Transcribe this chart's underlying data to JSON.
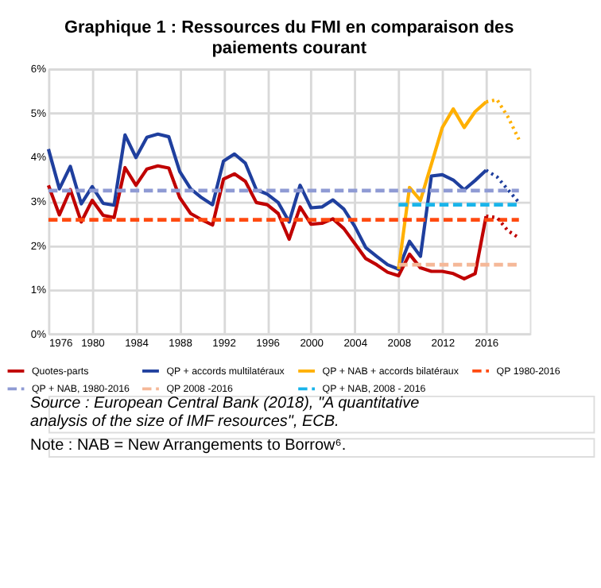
{
  "chart_data": {
    "type": "line",
    "title": "Graphique 1 : Ressources du FMI en comparaison des paiements courant",
    "xlim": [
      1976,
      2020
    ],
    "xticks": [
      1976,
      1980,
      1984,
      1988,
      1992,
      1996,
      2000,
      2004,
      2008,
      2012,
      2016
    ],
    "ylim": [
      0,
      6
    ],
    "yticks": [
      {
        "value": 0,
        "label": "0%"
      },
      {
        "value": 1,
        "label": "1%"
      },
      {
        "value": 2,
        "label": "2%"
      },
      {
        "value": 3,
        "label": "3%"
      },
      {
        "value": 4,
        "label": "4%"
      },
      {
        "value": 5,
        "label": "5%"
      },
      {
        "value": 6,
        "label": "6%"
      }
    ],
    "grid": true,
    "legend": "bottom",
    "series": [
      {
        "name": "Quotes-parts",
        "color": "#c00000",
        "line_style": "solid",
        "x": [
          1976,
          1977,
          1978,
          1979,
          1980,
          1981,
          1982,
          1983,
          1984,
          1985,
          1986,
          1987,
          1988,
          1989,
          1990,
          1991,
          1992,
          1993,
          1994,
          1995,
          1996,
          1997,
          1998,
          1999,
          2000,
          2001,
          2002,
          2003,
          2004,
          2005,
          2006,
          2007,
          2008,
          2009,
          2010,
          2011,
          2012,
          2013,
          2014,
          2015,
          2016
        ],
        "values": [
          3.36,
          2.69,
          3.26,
          2.53,
          3.02,
          2.68,
          2.63,
          3.76,
          3.36,
          3.73,
          3.8,
          3.75,
          3.08,
          2.72,
          2.58,
          2.46,
          3.5,
          3.62,
          3.45,
          2.97,
          2.92,
          2.72,
          2.14,
          2.87,
          2.48,
          2.5,
          2.6,
          2.38,
          2.04,
          1.7,
          1.56,
          1.39,
          1.31,
          1.8,
          1.49,
          1.41,
          1.41,
          1.36,
          1.24,
          1.36,
          2.66
        ]
      },
      {
        "name": "QP + accords multilatéraux",
        "color": "#1f3f9e",
        "line_style": "solid",
        "x": [
          1976,
          1977,
          1978,
          1979,
          1980,
          1981,
          1982,
          1983,
          1984,
          1985,
          1986,
          1987,
          1988,
          1989,
          1990,
          1991,
          1992,
          1993,
          1994,
          1995,
          1996,
          1997,
          1998,
          1999,
          2000,
          2001,
          2002,
          2003,
          2004,
          2005,
          2006,
          2007,
          2008,
          2009,
          2010,
          2011,
          2012,
          2013,
          2014,
          2015,
          2016
        ],
        "values": [
          4.18,
          3.28,
          3.79,
          2.94,
          3.33,
          2.95,
          2.91,
          4.5,
          3.99,
          4.45,
          4.52,
          4.46,
          3.67,
          3.28,
          3.08,
          2.92,
          3.91,
          4.07,
          3.86,
          3.26,
          3.16,
          2.97,
          2.53,
          3.36,
          2.85,
          2.87,
          3.03,
          2.82,
          2.43,
          1.95,
          1.75,
          1.56,
          1.46,
          2.09,
          1.75,
          3.57,
          3.6,
          3.48,
          3.26,
          3.47,
          3.7
        ]
      },
      {
        "name": "QP + NAB + accords bilatéraux",
        "color": "#ffb000",
        "line_style": "solid",
        "x": [
          2008,
          2009,
          2010,
          2011,
          2012,
          2013,
          2014,
          2015,
          2016
        ],
        "values": [
          1.46,
          3.31,
          3.02,
          3.84,
          4.67,
          5.09,
          4.67,
          5.03,
          5.25
        ]
      },
      {
        "name": "QP 1980-2016",
        "color": "#ff4a10",
        "line_style": "dashed",
        "x": [
          1976,
          2019
        ],
        "values": [
          2.58,
          2.58
        ]
      },
      {
        "name": "QP + NAB, 1980-2016",
        "color": "#8f9bd4",
        "line_style": "dashed",
        "x": [
          1976,
          2019
        ],
        "values": [
          3.24,
          3.24
        ]
      },
      {
        "name": "QP 2008 -2016",
        "color": "#f5b898",
        "line_style": "dashed",
        "x": [
          2008,
          2019
        ],
        "values": [
          1.56,
          1.56
        ]
      },
      {
        "name": "QP + NAB, 2008 - 2016",
        "color": "#19b4ea",
        "line_style": "dashed",
        "x": [
          2008,
          2019
        ],
        "values": [
          2.92,
          2.92
        ]
      },
      {
        "color": "#c00000",
        "line_style": "dotted",
        "x": [
          2016,
          2017,
          2018,
          2019
        ],
        "values": [
          2.66,
          2.63,
          2.33,
          2.17
        ]
      },
      {
        "color": "#1f3f9e",
        "line_style": "dotted",
        "x": [
          2016,
          2017,
          2018,
          2019
        ],
        "values": [
          3.7,
          3.55,
          3.26,
          2.97
        ]
      },
      {
        "color": "#ffb000",
        "line_style": "dotted",
        "x": [
          2016,
          2017,
          2018,
          2019
        ],
        "values": [
          5.25,
          5.3,
          4.91,
          4.4
        ]
      }
    ],
    "annotations": [
      "Source : European Central Bank (2018), \"A quantitative analysis of the size of IMF resources\", ECB.",
      "Note : NAB = New Arrangements to Borrow⁶."
    ]
  }
}
